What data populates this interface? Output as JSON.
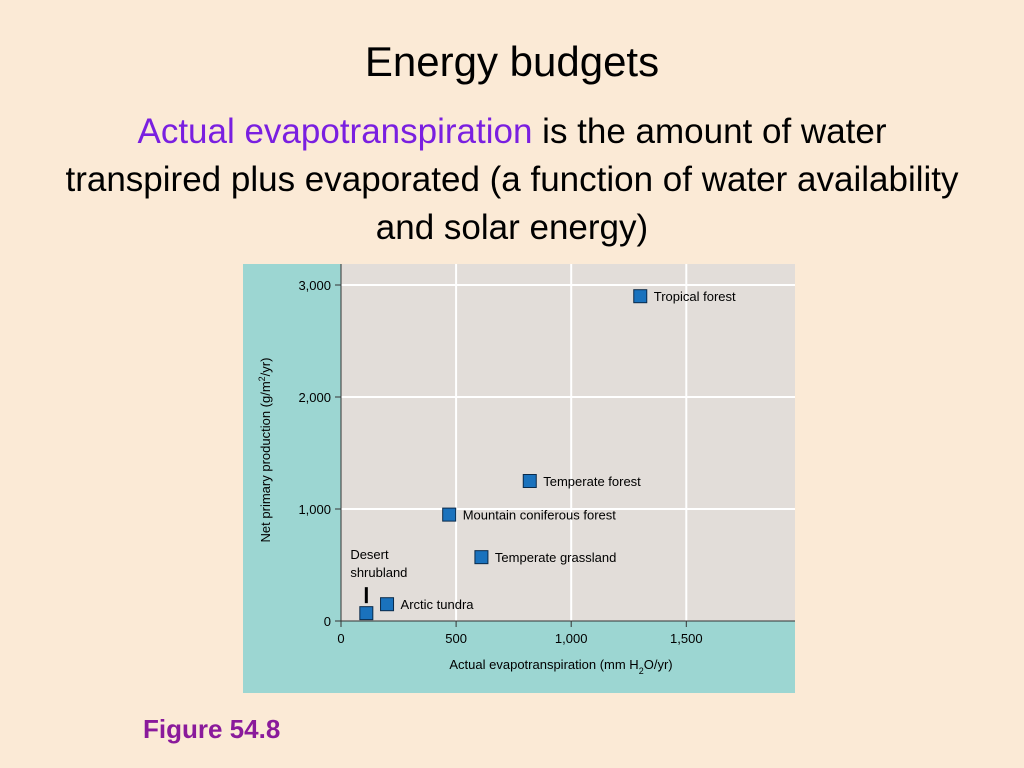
{
  "slide": {
    "title": "Energy budgets",
    "subtitle_highlight": "Actual evapotranspiration",
    "subtitle_rest": " is the amount of water transpired plus evaporated (a function of water availability and solar energy)",
    "caption": "Figure 54.8"
  },
  "colors": {
    "background": "#fbead6",
    "plot_area": "#e2ddd9",
    "panel": "#9cd6d2",
    "marker": "#1a72bd",
    "highlight_text": "#7a1fe0",
    "caption_text": "#8a1a9b"
  },
  "chart_data": {
    "type": "scatter",
    "title": "",
    "xlabel_pre": "Actual evapotranspiration (mm H",
    "xlabel_sub": "2",
    "xlabel_post": "O/yr)",
    "ylabel_pre": "Net primary production (g/m",
    "ylabel_sup": "2",
    "ylabel_post": "/yr)",
    "xlim": [
      0,
      1970
    ],
    "ylim": [
      0,
      3000
    ],
    "xticks": [
      0,
      500,
      1000,
      1500
    ],
    "xtick_labels": [
      "0",
      "500",
      "1,000",
      "1,500"
    ],
    "yticks": [
      0,
      1000,
      2000,
      3000
    ],
    "ytick_labels": [
      "0",
      "1,000",
      "2,000",
      "3,000"
    ],
    "grid": true,
    "points": [
      {
        "label": "Tropical forest",
        "x": 1300,
        "y": 2900
      },
      {
        "label": "Temperate forest",
        "x": 820,
        "y": 1250
      },
      {
        "label": "Mountain coniferous forest",
        "x": 470,
        "y": 950
      },
      {
        "label": "Temperate grassland",
        "x": 610,
        "y": 570
      },
      {
        "label": "Arctic tundra",
        "x": 200,
        "y": 150
      },
      {
        "label_line1": "Desert",
        "label_line2": "shrubland",
        "x": 110,
        "y": 70
      }
    ]
  }
}
